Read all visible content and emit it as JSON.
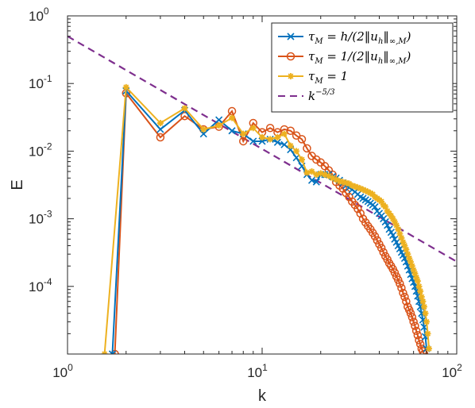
{
  "chart_data": {
    "type": "line",
    "xlabel": "k",
    "ylabel": "E",
    "xscale": "log",
    "yscale": "log",
    "xlim": [
      1,
      100
    ],
    "ylim": [
      1e-05,
      1
    ],
    "x_ticks": [
      {
        "base": "10",
        "exp": "0"
      },
      {
        "base": "10",
        "exp": "1"
      },
      {
        "base": "10",
        "exp": "2"
      }
    ],
    "y_ticks": [
      {
        "value": 1,
        "label": "10",
        "exp": "0"
      },
      {
        "value": 0.1,
        "label": "10",
        "exp": "-1"
      },
      {
        "value": 0.01,
        "label": "10",
        "exp": "-2"
      },
      {
        "value": 0.001,
        "label": "10",
        "exp": "-3"
      },
      {
        "value": 0.0001,
        "label": "10",
        "exp": "-4"
      }
    ],
    "grid": false,
    "legend_position": "top-right",
    "series": [
      {
        "legend": {
          "prefix": "τ",
          "sub": "M",
          "rest": " = h/(2‖u",
          "sub2": "h",
          "rest2": "‖",
          "sub3": "∞,M",
          "rest3": ")"
        },
        "color": "#0072BD",
        "marker": "x",
        "x": [
          1.7,
          2,
          3,
          4,
          5,
          6,
          7,
          8,
          9,
          10,
          11,
          12,
          13,
          14,
          15,
          16,
          17,
          18,
          19,
          20,
          21,
          22,
          23,
          24,
          25,
          26,
          27,
          28,
          29,
          30,
          31,
          32,
          33,
          34,
          35,
          36,
          37,
          38,
          39,
          40,
          41,
          42,
          43,
          44,
          45,
          46,
          47,
          48,
          49,
          50,
          51,
          52,
          53,
          54,
          55,
          56,
          57,
          58,
          59,
          60,
          61,
          62,
          63,
          64,
          65,
          66,
          67,
          68,
          69,
          70
        ],
        "y": [
          1e-05,
          0.078,
          0.021,
          0.04,
          0.018,
          0.029,
          0.02,
          0.018,
          0.014,
          0.014,
          0.015,
          0.0135,
          0.0125,
          0.0105,
          0.008,
          0.006,
          0.0045,
          0.0037,
          0.0035,
          0.0045,
          0.0045,
          0.0045,
          0.0042,
          0.004,
          0.0037,
          0.0034,
          0.0031,
          0.0029,
          0.0027,
          0.0025,
          0.0023,
          0.0021,
          0.002,
          0.0019,
          0.0018,
          0.0017,
          0.0016,
          0.0015,
          0.0013,
          0.0012,
          0.0011,
          0.001,
          0.0009,
          0.0008,
          0.0007,
          0.00063,
          0.00057,
          0.0005,
          0.00045,
          0.0004,
          0.00036,
          0.00032,
          0.00029,
          0.00026,
          0.00023,
          0.0002,
          0.000175,
          0.00015,
          0.00013,
          0.000115,
          0.0001,
          8.5e-05,
          7.2e-05,
          6e-05,
          5e-05,
          4e-05,
          3.2e-05,
          2.5e-05,
          1.8e-05,
          1.2e-05
        ]
      },
      {
        "legend": {
          "prefix": "τ",
          "sub": "M",
          "rest": " = 1/(2‖u",
          "sub2": "h",
          "rest2": "‖",
          "sub3": "∞,M",
          "rest3": ")"
        },
        "color": "#D95319",
        "marker": "o",
        "x": [
          1.75,
          2,
          3,
          4,
          5,
          6,
          7,
          8,
          9,
          10,
          11,
          12,
          13,
          14,
          15,
          16,
          17,
          18,
          19,
          20,
          21,
          22,
          23,
          24,
          25,
          26,
          27,
          28,
          29,
          30,
          31,
          32,
          33,
          34,
          35,
          36,
          37,
          38,
          39,
          40,
          41,
          42,
          43,
          44,
          45,
          46,
          47,
          48,
          49,
          50,
          51,
          52,
          53,
          54,
          55,
          56,
          57,
          58,
          59,
          60,
          61,
          62,
          63,
          64,
          65,
          66,
          67,
          68
        ],
        "y": [
          1e-05,
          0.072,
          0.016,
          0.033,
          0.021,
          0.023,
          0.039,
          0.014,
          0.026,
          0.019,
          0.022,
          0.019,
          0.021,
          0.02,
          0.017,
          0.015,
          0.011,
          0.0085,
          0.0075,
          0.0068,
          0.006,
          0.0052,
          0.0045,
          0.0035,
          0.0031,
          0.0028,
          0.0024,
          0.0021,
          0.0018,
          0.0016,
          0.0014,
          0.0012,
          0.001,
          0.00088,
          0.00078,
          0.0007,
          0.00062,
          0.00055,
          0.00048,
          0.00042,
          0.00037,
          0.00032,
          0.00028,
          0.00025,
          0.00022,
          0.0002,
          0.00018,
          0.00016,
          0.00014,
          0.000125,
          0.00011,
          9.5e-05,
          8e-05,
          7e-05,
          6e-05,
          5e-05,
          4.5e-05,
          4e-05,
          3.5e-05,
          3e-05,
          2.6e-05,
          2.2e-05,
          1.9e-05,
          1.6e-05,
          1.4e-05,
          1.2e-05,
          1.1e-05,
          1e-05
        ]
      },
      {
        "legend": {
          "prefix": "τ",
          "sub": "M",
          "rest": " = 1",
          "sub2": "",
          "rest2": "",
          "sub3": "",
          "rest3": ""
        },
        "color": "#EDB120",
        "marker": "*",
        "x": [
          1.55,
          2,
          3,
          4,
          5,
          6,
          7,
          8,
          9,
          10,
          11,
          12,
          13,
          14,
          15,
          16,
          17,
          18,
          19,
          20,
          21,
          22,
          23,
          24,
          25,
          26,
          27,
          28,
          29,
          30,
          31,
          32,
          33,
          34,
          35,
          36,
          37,
          38,
          39,
          40,
          41,
          42,
          43,
          44,
          45,
          46,
          47,
          48,
          49,
          50,
          51,
          52,
          53,
          54,
          55,
          56,
          57,
          58,
          59,
          60,
          61,
          62,
          63,
          64,
          65,
          66,
          67,
          68,
          69,
          70,
          71,
          72
        ],
        "y": [
          1e-05,
          0.088,
          0.026,
          0.043,
          0.021,
          0.024,
          0.031,
          0.018,
          0.022,
          0.016,
          0.015,
          0.016,
          0.018,
          0.012,
          0.01,
          0.0075,
          0.0048,
          0.005,
          0.0045,
          0.0047,
          0.0045,
          0.0043,
          0.004,
          0.0038,
          0.0036,
          0.0035,
          0.0034,
          0.0033,
          0.0031,
          0.003,
          0.0029,
          0.0028,
          0.0027,
          0.0026,
          0.0025,
          0.0024,
          0.0023,
          0.0021,
          0.002,
          0.0019,
          0.0018,
          0.0016,
          0.0015,
          0.0013,
          0.0012,
          0.0011,
          0.001,
          0.0009,
          0.0008,
          0.0007,
          0.0006,
          0.00052,
          0.00045,
          0.0004,
          0.00035,
          0.0003,
          0.00026,
          0.00023,
          0.0002,
          0.000175,
          0.000155,
          0.000135,
          0.00012,
          0.0001,
          8.5e-05,
          7e-05,
          6e-05,
          5e-05,
          4e-05,
          3e-05,
          2e-05,
          1.2e-05
        ]
      },
      {
        "legend": {
          "prefix": "k",
          "sup": "−5/3"
        },
        "color": "#7E2F8E",
        "style": "dashed",
        "x": [
          1,
          100
        ],
        "y": [
          0.5,
          0.000232
        ]
      }
    ]
  }
}
